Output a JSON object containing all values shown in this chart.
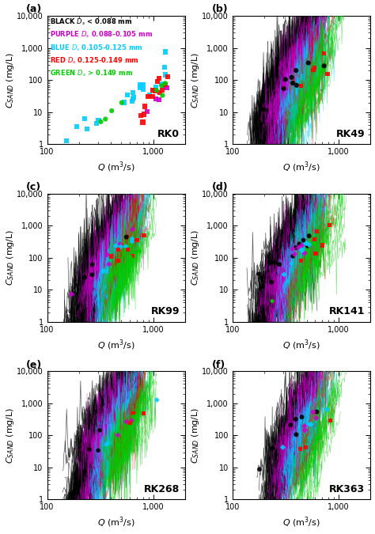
{
  "panels": [
    {
      "label": "a",
      "title": "RK0",
      "has_legend": true
    },
    {
      "label": "b",
      "title": "RK49",
      "has_legend": false
    },
    {
      "label": "c",
      "title": "RK99",
      "has_legend": false
    },
    {
      "label": "d",
      "title": "RK141",
      "has_legend": false
    },
    {
      "label": "e",
      "title": "RK268",
      "has_legend": false
    },
    {
      "label": "f",
      "title": "RK363",
      "has_legend": false
    }
  ],
  "colors": {
    "black": "#000000",
    "purple": "#CC00CC",
    "blue": "#00CCFF",
    "red": "#FF0000",
    "green": "#00CC00"
  },
  "legend_lines": [
    {
      "color": "#000000",
      "label": "BLACK $D_s$ < 0.088 mm"
    },
    {
      "color": "#CC00CC",
      "label": "PURPLE $D_s$ 0.088-0.105 mm"
    },
    {
      "color": "#00CCFF",
      "label": "BLUE $D_s$ 0.105-0.125 mm"
    },
    {
      "color": "#FF0000",
      "label": "RED $D_s$ 0.125-0.149 mm"
    },
    {
      "color": "#00CC00",
      "label": "GREEN $D_s$ > 0.149 mm"
    }
  ],
  "xlim": [
    100,
    2000
  ],
  "ylim": [
    1,
    10000
  ],
  "xlabel": "$Q$ (m$^3$/s)",
  "ylabel": "$C_{SAND}$ (mg/L)"
}
